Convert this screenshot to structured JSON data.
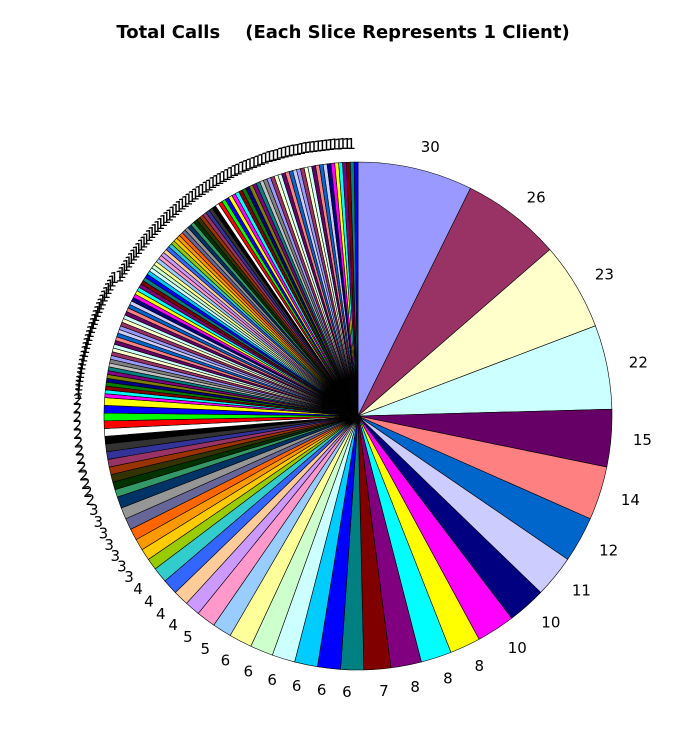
{
  "chart_data": {
    "type": "pie",
    "title": "Total Calls    (Each Slice Represents 1 Client)",
    "values": [
      30,
      26,
      23,
      22,
      15,
      14,
      12,
      11,
      10,
      10,
      8,
      8,
      8,
      7,
      6,
      6,
      6,
      6,
      6,
      6,
      5,
      5,
      4,
      4,
      4,
      4,
      3,
      3,
      3,
      3,
      3,
      3,
      3,
      2,
      2,
      2,
      2,
      2,
      2,
      2,
      2,
      2,
      2,
      2,
      2,
      2,
      1,
      1,
      1,
      1,
      1,
      1,
      1,
      1,
      1,
      1,
      1,
      1,
      1,
      1,
      1,
      1,
      1,
      1,
      1,
      1,
      1,
      1,
      1,
      1,
      1,
      1,
      1,
      1,
      1,
      1,
      1,
      1,
      1,
      1,
      1,
      1,
      1,
      1,
      1,
      1,
      1,
      1,
      1,
      1,
      1,
      1,
      1,
      1,
      1,
      1,
      1,
      1,
      1,
      1,
      1,
      1,
      1,
      1,
      1,
      1,
      1,
      1,
      1,
      1,
      1,
      1,
      1,
      1,
      1,
      1,
      1,
      1,
      1,
      1,
      1,
      1,
      1,
      1,
      1,
      1,
      1,
      1,
      1,
      1,
      1,
      1,
      1,
      1,
      1,
      1,
      1,
      1,
      1,
      1,
      1,
      1,
      1,
      1
    ],
    "colors": [
      "#9999FF",
      "#993366",
      "#FFFFCC",
      "#CCFFFF",
      "#660066",
      "#FF8080",
      "#0066CC",
      "#CCCCFF",
      "#000080",
      "#FF00FF",
      "#FFFF00",
      "#00FFFF",
      "#800080",
      "#800000",
      "#008080",
      "#0000FF",
      "#00CCFF",
      "#CCFFFF",
      "#CCFFCC",
      "#FFFF99",
      "#99CCFF",
      "#FF99CC",
      "#CC99FF",
      "#FFCC99",
      "#3366FF",
      "#33CCCC",
      "#99CC00",
      "#FFCC00",
      "#FF9900",
      "#FF6600",
      "#666699",
      "#969696",
      "#003366",
      "#339966",
      "#003300",
      "#333300",
      "#993300",
      "#993366",
      "#333399",
      "#333333",
      "#000000",
      "#FFFFFF",
      "#FF0000",
      "#00FF00",
      "#0000FF",
      "#FFFF00",
      "#FF00FF",
      "#00FFFF",
      "#800000",
      "#008000",
      "#000080",
      "#808000",
      "#800080",
      "#008080",
      "#C0C0C0",
      "#808080",
      "#9999FF",
      "#993366",
      "#FFFFCC",
      "#CCFFFF",
      "#660066",
      "#FF8080",
      "#0066CC",
      "#CCCCFF"
    ]
  }
}
